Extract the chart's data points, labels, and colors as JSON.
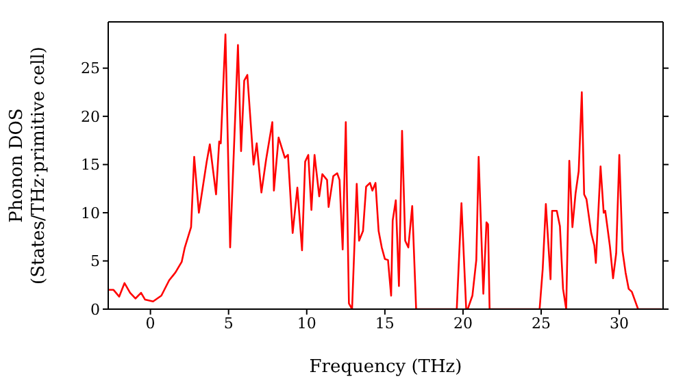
{
  "chart_data": {
    "type": "line",
    "xlabel": "Frequency (THz)",
    "ylabel": "Phonon DOS\n(States/THz·primitive cell)",
    "xlim": [
      -2.7,
      32.8
    ],
    "ylim": [
      0,
      29.8
    ],
    "xticks": [
      0,
      5,
      10,
      15,
      20,
      25,
      30
    ],
    "yticks": [
      0,
      5,
      10,
      15,
      20,
      25
    ],
    "marker": "none",
    "line_style": "solid",
    "series": [
      {
        "color": "#ff0000",
        "x": [
          -2.7,
          -2.36,
          -2.0,
          -1.66,
          -1.3,
          -0.96,
          -0.6,
          -0.35,
          0.17,
          0.7,
          1.2,
          1.6,
          2.0,
          2.2,
          2.6,
          2.8,
          3.1,
          3.6,
          3.8,
          4.2,
          4.4,
          4.5,
          4.8,
          5.1,
          5.6,
          5.8,
          6.0,
          6.2,
          6.6,
          6.8,
          7.1,
          7.4,
          7.8,
          7.9,
          8.2,
          8.6,
          8.8,
          9.1,
          9.4,
          9.7,
          9.9,
          10.1,
          10.3,
          10.5,
          10.8,
          11.0,
          11.3,
          11.4,
          11.7,
          11.95,
          12.1,
          12.3,
          12.5,
          12.7,
          12.9,
          13.2,
          13.35,
          13.6,
          13.8,
          14.05,
          14.2,
          14.4,
          14.6,
          14.8,
          15.0,
          15.2,
          15.4,
          15.5,
          15.7,
          15.9,
          16.1,
          16.3,
          16.5,
          16.75,
          17.0,
          19.6,
          19.9,
          20.2,
          20.3,
          20.6,
          20.85,
          21.0,
          21.3,
          21.5,
          21.6,
          21.7,
          24.9,
          25.1,
          25.3,
          25.6,
          25.7,
          26.0,
          26.2,
          26.4,
          26.6,
          26.8,
          27.0,
          27.2,
          27.4,
          27.6,
          27.75,
          27.9,
          28.2,
          28.4,
          28.5,
          28.8,
          29.0,
          29.1,
          29.4,
          29.6,
          29.8,
          30.0,
          30.2,
          30.4,
          30.6,
          30.8,
          31.2,
          32.7
        ],
        "values": [
          2.0,
          2.0,
          1.3,
          2.7,
          1.7,
          1.1,
          1.7,
          1.0,
          0.8,
          1.4,
          3.0,
          3.8,
          4.9,
          6.4,
          8.5,
          15.8,
          10.0,
          15.3,
          17.1,
          11.9,
          17.4,
          17.2,
          28.5,
          6.4,
          27.4,
          16.4,
          23.7,
          24.3,
          15.0,
          17.2,
          12.1,
          15.5,
          19.4,
          12.3,
          17.8,
          15.7,
          16.0,
          7.9,
          12.6,
          6.1,
          15.3,
          16.0,
          10.3,
          16.0,
          11.7,
          14.0,
          13.4,
          10.6,
          13.8,
          14.1,
          13.4,
          6.2,
          19.4,
          0.6,
          0,
          13.0,
          7.1,
          8.1,
          12.7,
          13.1,
          12.3,
          13.1,
          8.1,
          6.4,
          5.2,
          5.1,
          1.4,
          9.2,
          11.3,
          2.4,
          18.5,
          7.1,
          6.4,
          10.7,
          0,
          0,
          11.0,
          0.1,
          0,
          1.4,
          5.1,
          15.8,
          1.6,
          9.0,
          8.8,
          0,
          0,
          4.2,
          10.9,
          3.1,
          10.2,
          10.2,
          8.6,
          2.1,
          0,
          15.4,
          8.5,
          12.0,
          14.3,
          22.5,
          11.9,
          11.4,
          7.9,
          6.6,
          4.8,
          14.8,
          10.0,
          10.2,
          6.5,
          3.2,
          5.8,
          16.0,
          6.1,
          3.8,
          2.1,
          1.8,
          0,
          0
        ]
      }
    ]
  }
}
